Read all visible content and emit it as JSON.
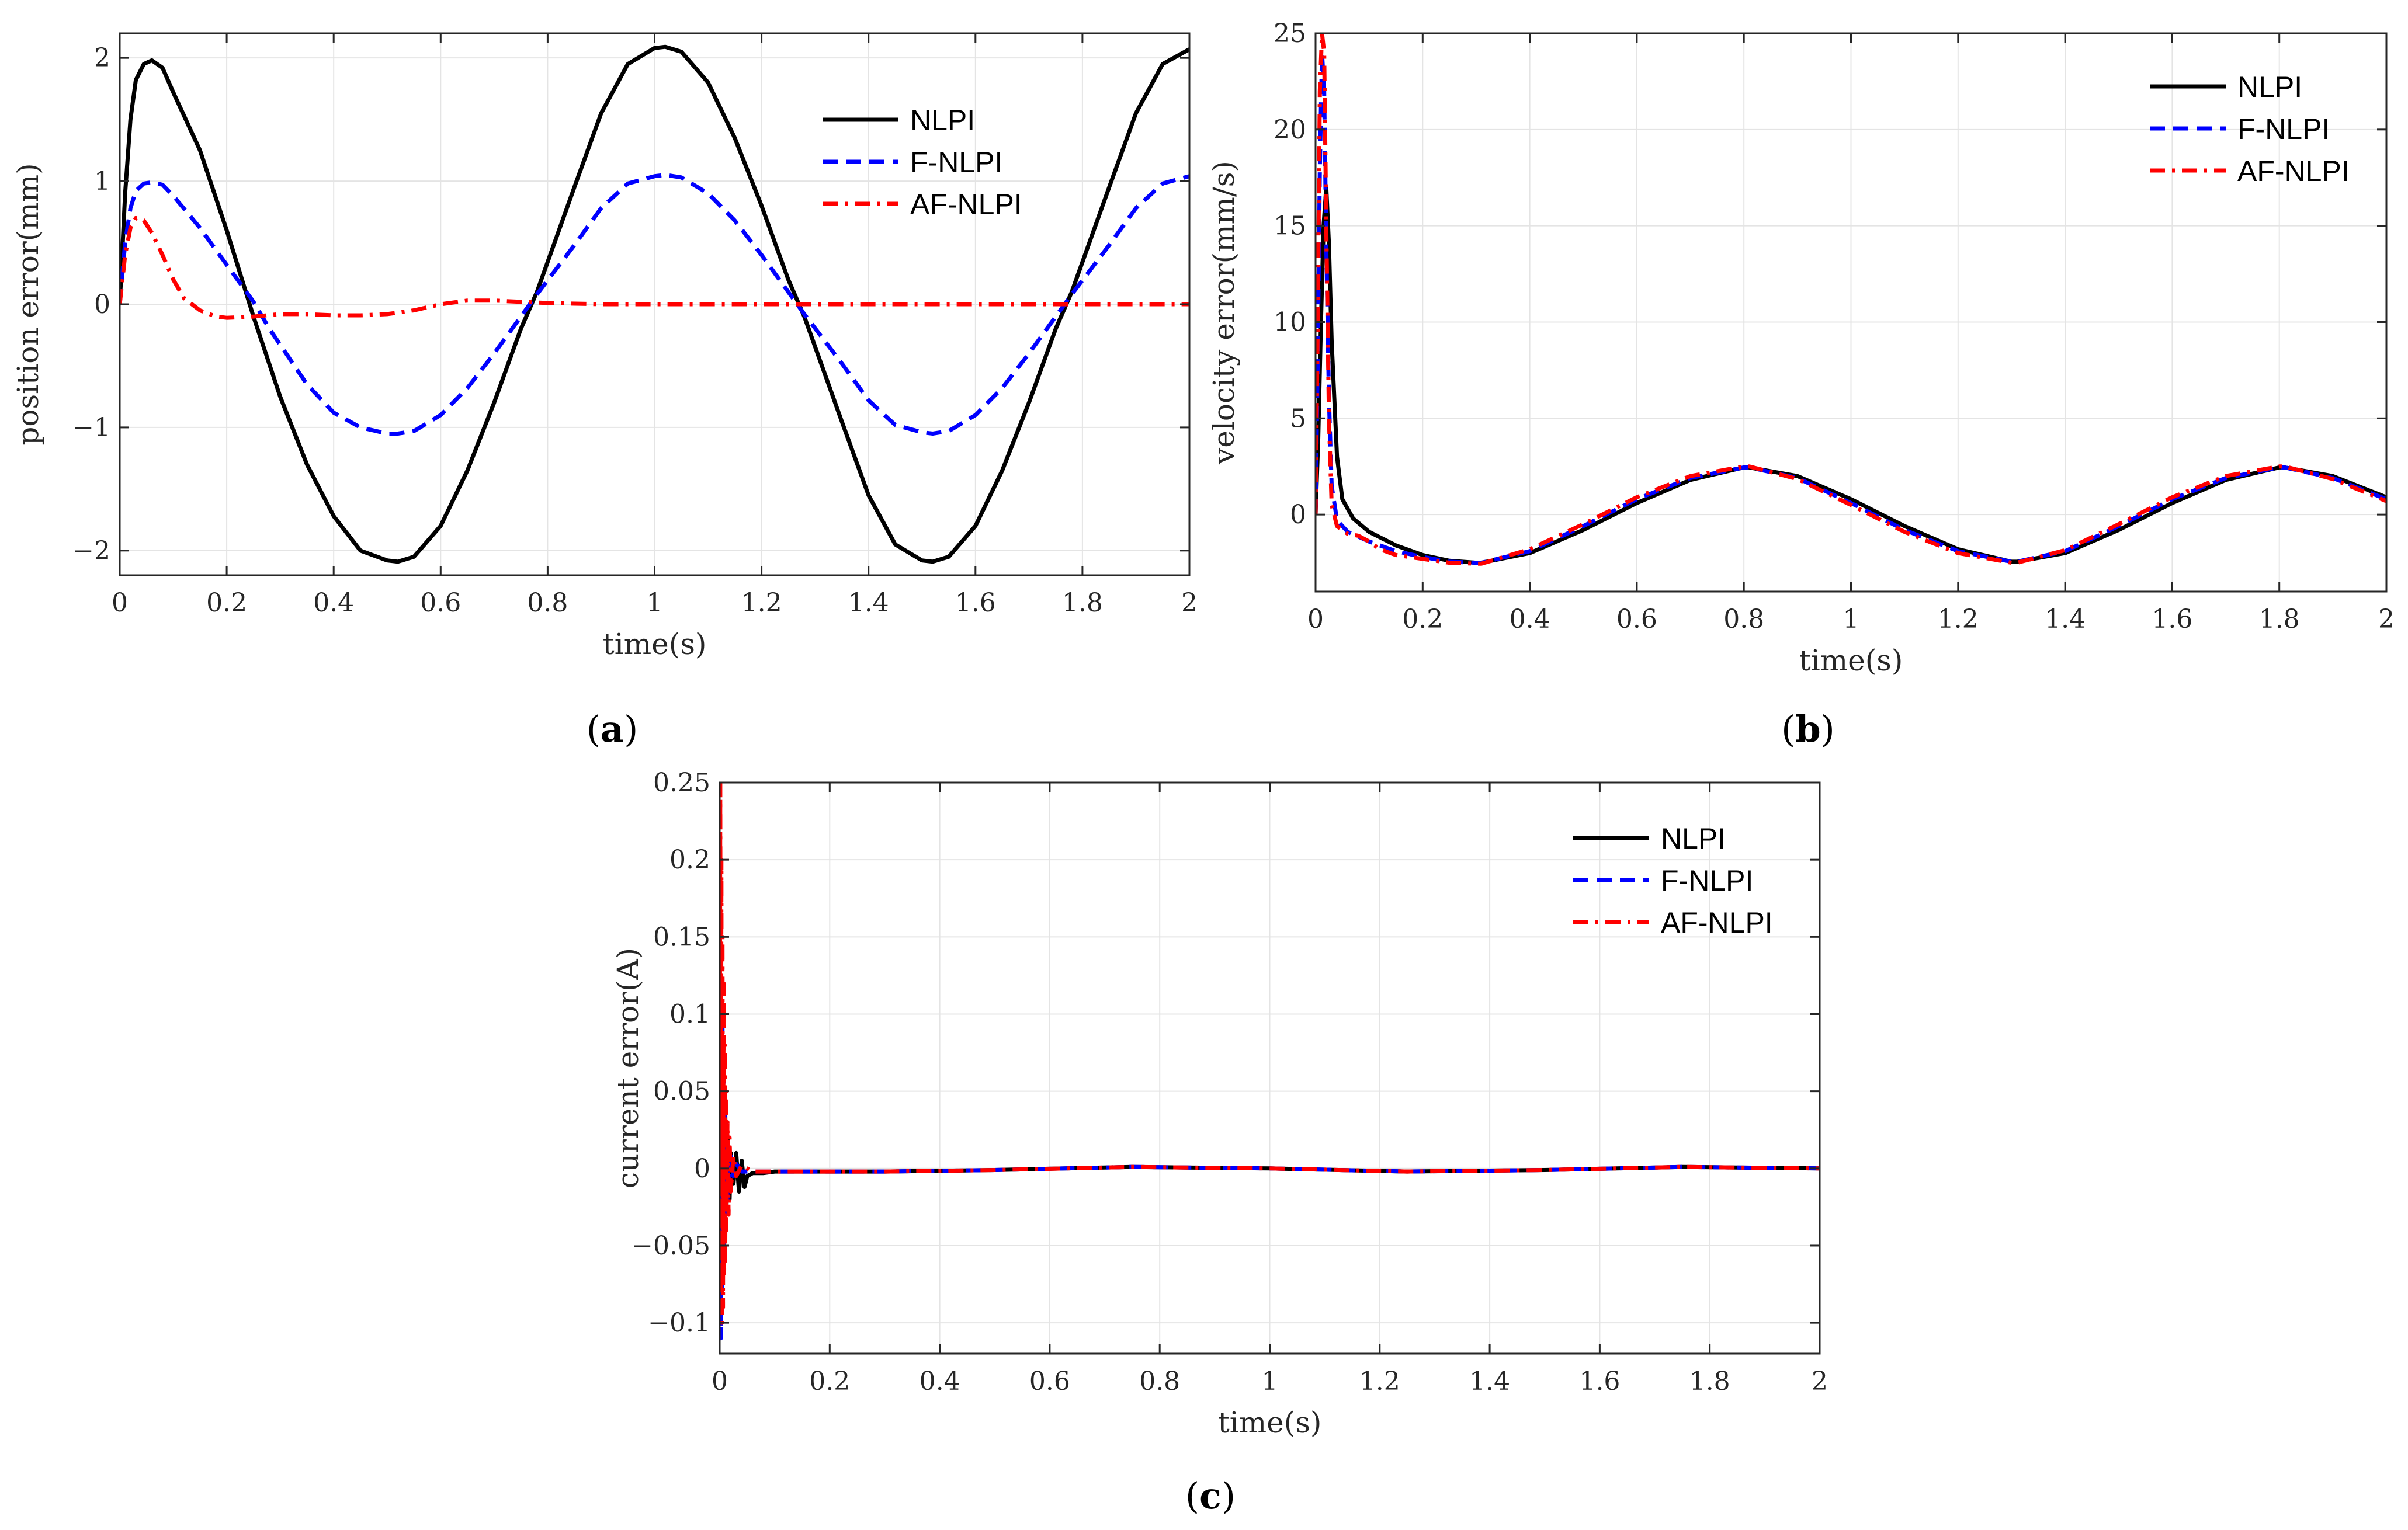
{
  "chart_data": [
    {
      "panel": "a",
      "caption_open": "(",
      "caption_letter": "a",
      "caption_close": ")",
      "type": "line",
      "title": "",
      "xlabel": "time(s)",
      "ylabel": "position error(mm)",
      "xlim": [
        0,
        2
      ],
      "ylim": [
        -2.2,
        2.2
      ],
      "xticks": [
        0,
        0.2,
        0.4,
        0.6,
        0.8,
        1,
        1.2,
        1.4,
        1.6,
        1.8,
        2
      ],
      "xtick_labels": [
        "0",
        "0.2",
        "0.4",
        "0.6",
        "0.8",
        "1",
        "1.2",
        "1.4",
        "1.6",
        "1.8",
        "2"
      ],
      "yticks": [
        -2,
        -1,
        0,
        1,
        2
      ],
      "ytick_labels": [
        "−2",
        "−1",
        "0",
        "1",
        "2"
      ],
      "grid": true,
      "legend_position": "top-right",
      "series": [
        {
          "name": "NLPI",
          "color": "#000000",
          "dash": "solid",
          "x": [
            0,
            0.01,
            0.02,
            0.03,
            0.045,
            0.06,
            0.08,
            0.1,
            0.15,
            0.2,
            0.25,
            0.3,
            0.35,
            0.4,
            0.45,
            0.5,
            0.52,
            0.55,
            0.6,
            0.65,
            0.7,
            0.75,
            0.78,
            0.85,
            0.9,
            0.95,
            1.0,
            1.02,
            1.05,
            1.1,
            1.15,
            1.2,
            1.25,
            1.28,
            1.35,
            1.4,
            1.45,
            1.5,
            1.52,
            1.55,
            1.6,
            1.65,
            1.7,
            1.75,
            1.78,
            1.85,
            1.9,
            1.95,
            2.0
          ],
          "y": [
            0,
            0.9,
            1.5,
            1.82,
            1.95,
            1.98,
            1.92,
            1.72,
            1.25,
            0.6,
            -0.1,
            -0.75,
            -1.3,
            -1.72,
            -2.0,
            -2.08,
            -2.09,
            -2.05,
            -1.8,
            -1.35,
            -0.8,
            -0.2,
            0.1,
            0.95,
            1.55,
            1.95,
            2.08,
            2.09,
            2.05,
            1.8,
            1.35,
            0.8,
            0.2,
            -0.1,
            -0.95,
            -1.55,
            -1.95,
            -2.08,
            -2.09,
            -2.05,
            -1.8,
            -1.35,
            -0.8,
            -0.2,
            0.1,
            0.95,
            1.55,
            1.95,
            2.07
          ]
        },
        {
          "name": "F-NLPI",
          "color": "#0000ff",
          "dash": "dashed",
          "x": [
            0,
            0.01,
            0.02,
            0.03,
            0.045,
            0.06,
            0.08,
            0.1,
            0.15,
            0.2,
            0.25,
            0.28,
            0.35,
            0.4,
            0.45,
            0.5,
            0.52,
            0.55,
            0.6,
            0.65,
            0.7,
            0.75,
            0.78,
            0.85,
            0.9,
            0.95,
            1.0,
            1.02,
            1.05,
            1.1,
            1.15,
            1.2,
            1.25,
            1.28,
            1.35,
            1.4,
            1.45,
            1.5,
            1.52,
            1.55,
            1.6,
            1.65,
            1.7,
            1.75,
            1.78,
            1.85,
            1.9,
            1.95,
            2.0
          ],
          "y": [
            0,
            0.5,
            0.78,
            0.92,
            0.98,
            0.99,
            0.97,
            0.88,
            0.62,
            0.32,
            0.02,
            -0.2,
            -0.65,
            -0.88,
            -1.0,
            -1.05,
            -1.05,
            -1.03,
            -0.9,
            -0.68,
            -0.4,
            -0.1,
            0.08,
            0.48,
            0.78,
            0.98,
            1.04,
            1.05,
            1.03,
            0.9,
            0.68,
            0.4,
            0.1,
            -0.08,
            -0.48,
            -0.78,
            -0.98,
            -1.04,
            -1.05,
            -1.03,
            -0.9,
            -0.68,
            -0.4,
            -0.1,
            0.08,
            0.48,
            0.78,
            0.98,
            1.04
          ]
        },
        {
          "name": "AF-NLPI",
          "color": "#ff0000",
          "dash": "dashdot",
          "x": [
            0,
            0.01,
            0.02,
            0.03,
            0.045,
            0.06,
            0.08,
            0.1,
            0.12,
            0.15,
            0.18,
            0.2,
            0.25,
            0.3,
            0.35,
            0.4,
            0.45,
            0.5,
            0.55,
            0.6,
            0.65,
            0.7,
            0.75,
            0.8,
            0.9,
            1.0,
            1.2,
            1.4,
            1.6,
            1.8,
            2.0
          ],
          "y": [
            0,
            0.4,
            0.62,
            0.7,
            0.68,
            0.58,
            0.4,
            0.2,
            0.05,
            -0.05,
            -0.1,
            -0.11,
            -0.1,
            -0.08,
            -0.08,
            -0.09,
            -0.09,
            -0.08,
            -0.05,
            0.0,
            0.03,
            0.03,
            0.02,
            0.01,
            0.0,
            0.0,
            0.0,
            0.0,
            0.0,
            0.0,
            0.0
          ]
        }
      ]
    },
    {
      "panel": "b",
      "caption_open": "(",
      "caption_letter": "b",
      "caption_close": ")",
      "type": "line",
      "title": "",
      "xlabel": "time(s)",
      "ylabel": "velocity error(mm/s)",
      "xlim": [
        0,
        2
      ],
      "ylim": [
        -4,
        25
      ],
      "xticks": [
        0,
        0.2,
        0.4,
        0.6,
        0.8,
        1,
        1.2,
        1.4,
        1.6,
        1.8,
        2
      ],
      "xtick_labels": [
        "0",
        "0.2",
        "0.4",
        "0.6",
        "0.8",
        "1",
        "1.2",
        "1.4",
        "1.6",
        "1.8",
        "2"
      ],
      "yticks": [
        0,
        5,
        10,
        15,
        20,
        25
      ],
      "ytick_labels": [
        "0",
        "5",
        "10",
        "15",
        "20",
        "25"
      ],
      "grid": true,
      "legend_position": "top-right",
      "series": [
        {
          "name": "NLPI",
          "color": "#000000",
          "dash": "solid",
          "x": [
            0,
            0.005,
            0.01,
            0.015,
            0.02,
            0.025,
            0.03,
            0.04,
            0.05,
            0.07,
            0.1,
            0.15,
            0.2,
            0.25,
            0.3,
            0.31,
            0.4,
            0.5,
            0.6,
            0.7,
            0.8,
            0.81,
            0.9,
            1.0,
            1.1,
            1.2,
            1.3,
            1.31,
            1.4,
            1.5,
            1.6,
            1.7,
            1.8,
            1.81,
            1.9,
            2.0
          ],
          "y": [
            0,
            4,
            10,
            15,
            17,
            14,
            9,
            3,
            0.8,
            -0.2,
            -0.9,
            -1.6,
            -2.1,
            -2.4,
            -2.5,
            -2.5,
            -2.0,
            -0.8,
            0.6,
            1.8,
            2.45,
            2.45,
            2.0,
            0.8,
            -0.6,
            -1.8,
            -2.45,
            -2.45,
            -2.0,
            -0.8,
            0.6,
            1.8,
            2.45,
            2.45,
            2.0,
            0.9
          ]
        },
        {
          "name": "F-NLPI",
          "color": "#0000ff",
          "dash": "dashed",
          "x": [
            0,
            0.004,
            0.008,
            0.012,
            0.016,
            0.02,
            0.025,
            0.03,
            0.04,
            0.06,
            0.1,
            0.15,
            0.2,
            0.25,
            0.3,
            0.31,
            0.4,
            0.5,
            0.6,
            0.7,
            0.8,
            0.81,
            0.9,
            1.0,
            1.1,
            1.2,
            1.3,
            1.31,
            1.4,
            1.5,
            1.6,
            1.7,
            1.8,
            1.81,
            1.9,
            2.0
          ],
          "y": [
            0,
            8,
            18,
            24,
            22,
            14,
            6,
            1.5,
            -0.3,
            -0.9,
            -1.4,
            -1.9,
            -2.2,
            -2.45,
            -2.5,
            -2.5,
            -1.9,
            -0.6,
            0.8,
            1.9,
            2.45,
            2.45,
            1.9,
            0.6,
            -0.8,
            -1.9,
            -2.45,
            -2.45,
            -1.9,
            -0.6,
            0.8,
            1.9,
            2.45,
            2.45,
            1.9,
            0.8
          ]
        },
        {
          "name": "AF-NLPI",
          "color": "#ff0000",
          "dash": "dashdot",
          "x": [
            0,
            0.004,
            0.008,
            0.012,
            0.016,
            0.02,
            0.025,
            0.03,
            0.04,
            0.06,
            0.08,
            0.1,
            0.12,
            0.15,
            0.2,
            0.25,
            0.3,
            0.31,
            0.4,
            0.5,
            0.6,
            0.7,
            0.8,
            0.81,
            0.9,
            1.0,
            1.1,
            1.2,
            1.3,
            1.31,
            1.4,
            1.5,
            1.6,
            1.7,
            1.8,
            1.81,
            1.9,
            2.0
          ],
          "y": [
            0,
            10,
            22,
            25,
            24,
            15,
            5,
            0.5,
            -0.6,
            -1.0,
            -1.1,
            -1.4,
            -1.8,
            -2.1,
            -2.3,
            -2.5,
            -2.55,
            -2.55,
            -1.8,
            -0.5,
            0.9,
            2.0,
            2.5,
            2.5,
            1.85,
            0.5,
            -0.9,
            -2.0,
            -2.5,
            -2.5,
            -1.85,
            -0.5,
            0.9,
            2.0,
            2.5,
            2.5,
            1.85,
            0.7
          ]
        }
      ]
    },
    {
      "panel": "c",
      "caption_open": "(",
      "caption_letter": "c",
      "caption_close": ")",
      "type": "line",
      "title": "",
      "xlabel": "time(s)",
      "ylabel": "current error(A)",
      "xlim": [
        0,
        2
      ],
      "ylim": [
        -0.12,
        0.25
      ],
      "xticks": [
        0,
        0.2,
        0.4,
        0.6,
        0.8,
        1,
        1.2,
        1.4,
        1.6,
        1.8,
        2
      ],
      "xtick_labels": [
        "0",
        "0.2",
        "0.4",
        "0.6",
        "0.8",
        "1",
        "1.2",
        "1.4",
        "1.6",
        "1.8",
        "2"
      ],
      "yticks": [
        -0.1,
        -0.05,
        0,
        0.05,
        0.1,
        0.15,
        0.2,
        0.25
      ],
      "ytick_labels": [
        "−0.1",
        "−0.05",
        "0",
        "0.05",
        "0.1",
        "0.15",
        "0.2",
        "0.25"
      ],
      "grid": true,
      "legend_position": "top-right",
      "series": [
        {
          "name": "NLPI",
          "color": "#000000",
          "dash": "solid",
          "x": [
            0,
            0.002,
            0.004,
            0.006,
            0.008,
            0.01,
            0.012,
            0.015,
            0.018,
            0.02,
            0.025,
            0.03,
            0.035,
            0.04,
            0.045,
            0.05,
            0.06,
            0.08,
            0.1,
            0.3,
            0.5,
            0.75,
            1.0,
            1.25,
            1.5,
            1.75,
            2.0
          ],
          "y": [
            0,
            0.05,
            -0.03,
            0.04,
            -0.04,
            0.04,
            -0.03,
            0.02,
            -0.02,
            0.01,
            -0.01,
            0.01,
            -0.015,
            0.005,
            -0.012,
            -0.005,
            -0.003,
            -0.003,
            -0.002,
            -0.002,
            -0.001,
            0.001,
            0.0,
            -0.002,
            -0.001,
            0.001,
            0.0
          ]
        },
        {
          "name": "F-NLPI",
          "color": "#0000ff",
          "dash": "dashed",
          "x": [
            0,
            0.001,
            0.002,
            0.003,
            0.004,
            0.005,
            0.006,
            0.007,
            0.008,
            0.009,
            0.01,
            0.012,
            0.014,
            0.016,
            0.018,
            0.02,
            0.025,
            0.03,
            0.04,
            0.06,
            0.1,
            0.3,
            0.5,
            0.75,
            1.0,
            1.25,
            1.5,
            1.75,
            2.0
          ],
          "y": [
            0,
            0.1,
            -0.11,
            0.08,
            -0.09,
            0.1,
            -0.06,
            0.06,
            -0.05,
            0.04,
            -0.03,
            0.03,
            -0.02,
            0.015,
            -0.01,
            0.008,
            -0.005,
            0.003,
            -0.002,
            -0.002,
            -0.002,
            -0.002,
            -0.001,
            0.001,
            0.0,
            -0.002,
            -0.001,
            0.001,
            0.0
          ]
        },
        {
          "name": "AF-NLPI",
          "color": "#ff0000",
          "dash": "dashdot",
          "x": [
            0,
            0.001,
            0.002,
            0.003,
            0.004,
            0.005,
            0.006,
            0.007,
            0.008,
            0.009,
            0.01,
            0.011,
            0.012,
            0.014,
            0.016,
            0.018,
            0.02,
            0.025,
            0.03,
            0.04,
            0.06,
            0.1,
            0.3,
            0.5,
            0.75,
            1.0,
            1.25,
            1.5,
            1.75,
            2.0
          ],
          "y": [
            0,
            0.25,
            -0.08,
            0.2,
            -0.1,
            0.15,
            -0.09,
            0.12,
            -0.07,
            0.08,
            -0.06,
            0.05,
            -0.04,
            0.03,
            -0.03,
            0.02,
            -0.015,
            0.008,
            -0.005,
            0.002,
            -0.002,
            -0.002,
            -0.002,
            -0.001,
            0.001,
            0.0,
            -0.002,
            -0.001,
            0.001,
            0.0
          ]
        }
      ]
    }
  ]
}
